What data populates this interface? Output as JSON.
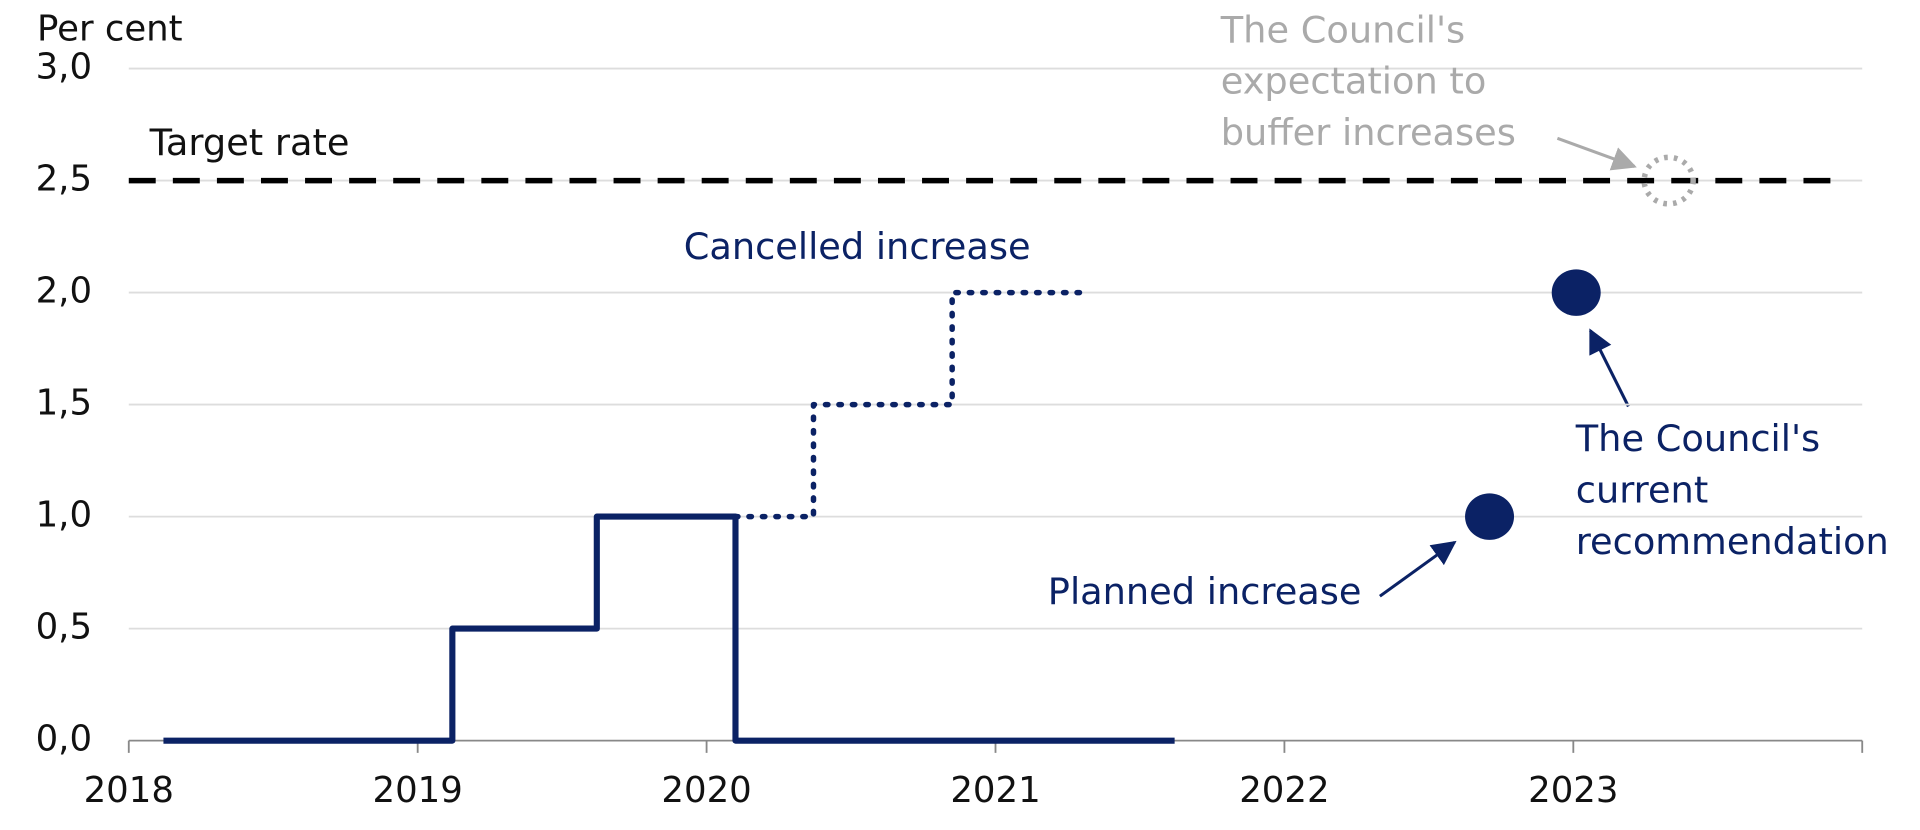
{
  "chart_data": {
    "type": "line",
    "y_label": "Per cent",
    "xlim": [
      2018,
      2024
    ],
    "xticks": [
      2018,
      2019,
      2020,
      2021,
      2022,
      2023
    ],
    "ylim": [
      0,
      3
    ],
    "yticks": [
      {
        "value": 0,
        "label": "0,0"
      },
      {
        "value": 0.5,
        "label": "0,5"
      },
      {
        "value": 1,
        "label": "1,0"
      },
      {
        "value": 1.5,
        "label": "1,5"
      },
      {
        "value": 2,
        "label": "2,0"
      },
      {
        "value": 2.5,
        "label": "2,5"
      },
      {
        "value": 3,
        "label": "3,0"
      }
    ],
    "grid": true,
    "series": [
      {
        "style": "solid",
        "color": "#0b2265",
        "x": [
          2018.12,
          2019.12,
          2019.12,
          2019.62,
          2019.62,
          2020.1,
          2020.1,
          2021.62
        ],
        "values": [
          0,
          0,
          0.5,
          0.5,
          1,
          1,
          0,
          0
        ]
      },
      {
        "name": "Cancelled increase",
        "style": "dotted",
        "color": "#0b2265",
        "x": [
          2020.1,
          2020.37,
          2020.37,
          2020.85,
          2020.85,
          2021.32
        ],
        "values": [
          1,
          1,
          1.5,
          1.5,
          2,
          2
        ]
      },
      {
        "name": "Target rate",
        "style": "dashed",
        "color": "#000000",
        "x": [
          2018,
          2023.9
        ],
        "values": [
          2.5,
          2.5
        ]
      }
    ],
    "points": [
      {
        "name": "Planned increase",
        "x": 2022.71,
        "y": 1.0,
        "color": "#0b2265",
        "filled": true
      },
      {
        "lines": [
          "The Council's",
          "current",
          "recommendation"
        ],
        "x": 2023.01,
        "y": 2.0,
        "color": "#0b2265",
        "filled": true
      },
      {
        "lines": [
          "The Council's",
          "expectation to",
          "buffer increases"
        ],
        "x": 2023.33,
        "y": 2.5,
        "color": "#aaaaaa",
        "filled": false
      }
    ]
  }
}
